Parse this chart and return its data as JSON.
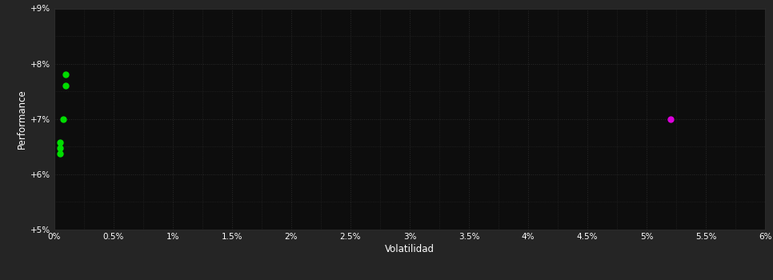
{
  "background_color": "#252525",
  "plot_bg_color": "#0d0d0d",
  "grid_color": "#2a2a2a",
  "text_color": "#ffffff",
  "xlabel": "Volatilidad",
  "ylabel": "Performance",
  "xlim": [
    0,
    0.06
  ],
  "ylim": [
    0.05,
    0.09
  ],
  "xtick_labels": [
    "0%",
    "0.5%",
    "1%",
    "1.5%",
    "2%",
    "2.5%",
    "3%",
    "3.5%",
    "4%",
    "4.5%",
    "5%",
    "5.5%",
    "6%"
  ],
  "xtick_values": [
    0.0,
    0.005,
    0.01,
    0.015,
    0.02,
    0.025,
    0.03,
    0.035,
    0.04,
    0.045,
    0.05,
    0.055,
    0.06
  ],
  "ytick_labels": [
    "+5%",
    "+6%",
    "+7%",
    "+8%",
    "+9%"
  ],
  "ytick_values": [
    0.05,
    0.06,
    0.07,
    0.08,
    0.09
  ],
  "green_points": [
    [
      0.001,
      0.078
    ],
    [
      0.001,
      0.076
    ],
    [
      0.0008,
      0.07
    ],
    [
      0.0005,
      0.0658
    ],
    [
      0.0005,
      0.0648
    ],
    [
      0.0005,
      0.0638
    ]
  ],
  "magenta_points": [
    [
      0.052,
      0.07
    ]
  ],
  "green_color": "#00dd00",
  "magenta_color": "#dd00dd",
  "point_size": 25
}
